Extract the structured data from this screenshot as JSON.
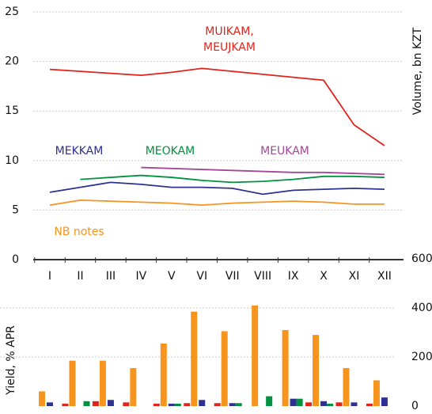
{
  "chart_data": [
    {
      "type": "line",
      "y_label": "Volume, bn KZT",
      "categories": [
        "I",
        "II",
        "III",
        "IV",
        "V",
        "VI",
        "VII",
        "VIII",
        "IX",
        "X",
        "XI",
        "XII"
      ],
      "ylim": [
        0,
        25
      ],
      "yticks": [
        0,
        5,
        10,
        15,
        20,
        25
      ],
      "grid": true,
      "series": [
        {
          "name": "MUIKAM, MEUJKAM",
          "color": "#e2231a",
          "values": [
            19.2,
            19.0,
            18.8,
            18.6,
            18.9,
            19.3,
            19.0,
            18.7,
            18.4,
            18.1,
            13.6,
            11.5
          ]
        },
        {
          "name": "MEKKAM",
          "color": "#2e3192",
          "values": [
            6.8,
            7.3,
            7.8,
            7.6,
            7.3,
            7.3,
            7.2,
            6.6,
            7.0,
            7.1,
            7.2,
            7.1
          ]
        },
        {
          "name": "MEOKAM",
          "color": "#00923f",
          "values": [
            null,
            8.1,
            8.3,
            8.5,
            8.3,
            8.0,
            7.8,
            7.9,
            8.1,
            8.4,
            8.4,
            8.3
          ]
        },
        {
          "name": "MEUKAM",
          "color": "#a5479b",
          "values": [
            null,
            null,
            null,
            9.3,
            9.2,
            9.1,
            9.0,
            8.9,
            8.8,
            8.8,
            8.7,
            8.6
          ]
        },
        {
          "name": "NB notes",
          "color": "#f7941d",
          "values": [
            5.5,
            6.0,
            5.9,
            5.8,
            5.7,
            5.5,
            5.7,
            5.8,
            5.9,
            5.8,
            5.6,
            5.6
          ]
        }
      ]
    },
    {
      "type": "bar",
      "y_label": "Yield, % APR",
      "y2lim": [
        0,
        600
      ],
      "y2ticks": [
        0,
        200,
        400,
        600
      ],
      "grid": true,
      "series": [
        {
          "color": "#e2231a",
          "axis": "y2",
          "values": [
            null,
            10,
            20,
            15,
            10,
            12,
            12,
            null,
            null,
            15,
            15,
            10
          ]
        },
        {
          "color": "#f7941d",
          "axis": "y2",
          "values": [
            60,
            185,
            185,
            155,
            255,
            385,
            305,
            410,
            310,
            290,
            155,
            105
          ]
        },
        {
          "color": "#2e3192",
          "axis": "y2",
          "values": [
            15,
            null,
            25,
            null,
            10,
            25,
            12,
            null,
            30,
            20,
            15,
            35
          ]
        },
        {
          "color": "#00923f",
          "axis": "y2",
          "values": [
            null,
            20,
            null,
            null,
            10,
            null,
            12,
            40,
            30,
            10,
            null,
            null
          ]
        }
      ]
    }
  ]
}
